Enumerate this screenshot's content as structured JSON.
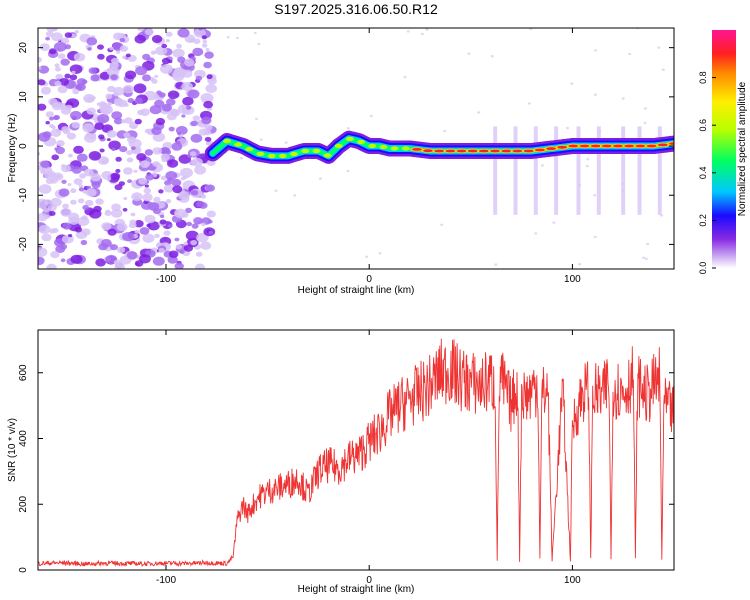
{
  "title": "S197.2025.316.06.50.R12",
  "chart_data": [
    {
      "type": "heatmap",
      "xlabel": "Height of straight line (km)",
      "ylabel": "Frequency (Hz)",
      "xlim": [
        -163,
        150
      ],
      "ylim": [
        -25,
        24
      ],
      "xticks": [
        -100,
        0,
        100
      ],
      "xtick_labels": [
        "-100",
        "0",
        "100"
      ],
      "yticks": [
        -20,
        -10,
        0,
        10,
        20
      ],
      "ytick_labels": [
        "-20",
        "-10",
        "0",
        "10",
        "20"
      ],
      "noise_region_x": [
        -163,
        -77
      ],
      "signal_onset_x": -77,
      "signal_track": {
        "x": [
          -77,
          -70,
          -62,
          -55,
          -48,
          -40,
          -32,
          -25,
          -20,
          -15,
          -10,
          -5,
          0,
          5,
          10,
          20,
          30,
          40,
          50,
          55,
          60,
          70,
          80,
          90,
          100,
          110,
          120,
          130,
          140,
          150
        ],
        "freq_hz": [
          -1.5,
          1,
          0,
          -1.5,
          -2,
          -2,
          -1,
          -1,
          -2,
          0,
          1.5,
          1,
          0,
          0,
          -0.5,
          -0.5,
          -1,
          -1,
          -1,
          -1,
          -1,
          -1,
          -1,
          -0.5,
          0,
          0,
          0,
          0,
          0,
          0.5
        ]
      },
      "colorbar": {
        "label": "Normalized spectral amplitude",
        "range": [
          0,
          1
        ],
        "ticks": [
          0.0,
          0.2,
          0.4,
          0.6,
          0.8
        ],
        "tick_labels": [
          "0.0",
          "0.2",
          "0.4",
          "0.6",
          "0.8"
        ],
        "colors": [
          "#ffffff",
          "#c9a8f2",
          "#8a2be2",
          "#1a0aff",
          "#00c8ff",
          "#00ff60",
          "#b8ff00",
          "#ffee00",
          "#ff8800",
          "#ff2020",
          "#ff1493"
        ]
      }
    },
    {
      "type": "line",
      "xlabel": "Height of straight line (km)",
      "ylabel": "SNR (10 * v/v)",
      "xlim": [
        -163,
        150
      ],
      "ylim": [
        0,
        730
      ],
      "xticks": [
        -100,
        0,
        100
      ],
      "xtick_labels": [
        "-100",
        "0",
        "100"
      ],
      "yticks": [
        0,
        200,
        400,
        600
      ],
      "ytick_labels": [
        "0",
        "200",
        "400",
        "600"
      ],
      "color": "#ee3333",
      "series": [
        {
          "name": "SNR",
          "x": [
            -163,
            -150,
            -140,
            -130,
            -120,
            -110,
            -100,
            -90,
            -80,
            -70,
            -67,
            -65,
            -62,
            -60,
            -55,
            -50,
            -45,
            -40,
            -35,
            -30,
            -25,
            -20,
            -15,
            -10,
            -5,
            0,
            5,
            10,
            15,
            20,
            25,
            30,
            35,
            40,
            45,
            50,
            55,
            60,
            62,
            63,
            64,
            65,
            70,
            73,
            74,
            75,
            78,
            83,
            84,
            85,
            88,
            90,
            95,
            96,
            97,
            99,
            100,
            105,
            108,
            109,
            110,
            115,
            118,
            119,
            120,
            125,
            130,
            131,
            132,
            133,
            137,
            140,
            143,
            144,
            145,
            150
          ],
          "y": [
            20,
            22,
            18,
            21,
            20,
            19,
            21,
            20,
            22,
            20,
            40,
            150,
            200,
            170,
            220,
            240,
            250,
            260,
            280,
            230,
            300,
            320,
            310,
            340,
            350,
            390,
            420,
            470,
            500,
            520,
            540,
            560,
            600,
            610,
            580,
            570,
            560,
            580,
            550,
            30,
            560,
            580,
            500,
            570,
            30,
            540,
            530,
            570,
            40,
            530,
            550,
            30,
            540,
            450,
            310,
            30,
            440,
            540,
            550,
            30,
            540,
            530,
            580,
            30,
            560,
            540,
            590,
            30,
            550,
            560,
            530,
            560,
            580,
            30,
            500,
            480
          ]
        }
      ]
    }
  ]
}
